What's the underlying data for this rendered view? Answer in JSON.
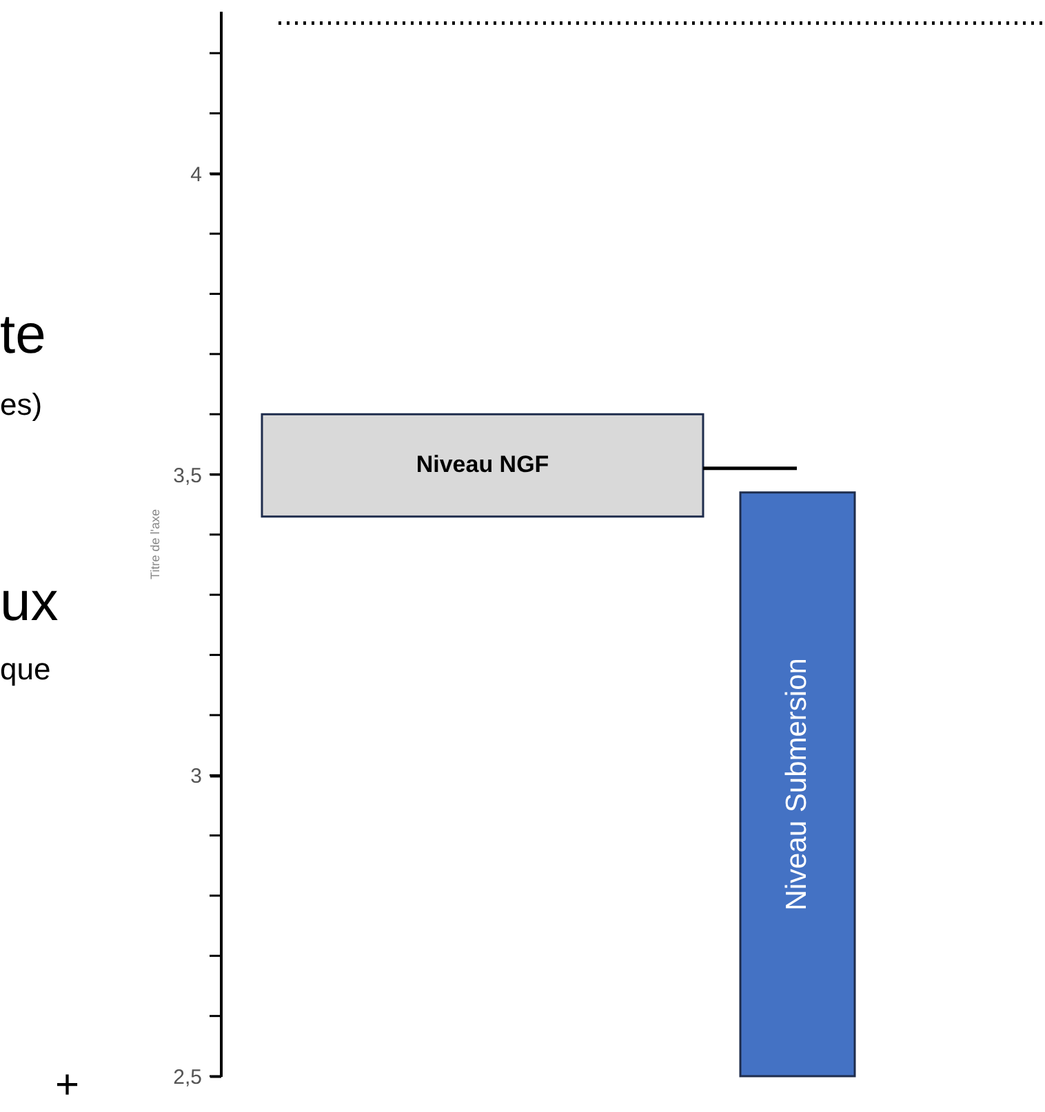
{
  "chart_data": {
    "type": "bar",
    "categories": [
      "Niveau NGF",
      "Niveau Submersion"
    ],
    "base": [
      3.43,
      2.5
    ],
    "values": [
      0.17,
      0.97
    ],
    "colors": [
      "#d9d9d9",
      "#4472c4"
    ],
    "ylabel": "Titre de l'axe",
    "ylim": [
      2.5,
      4.27
    ],
    "yticks": [
      {
        "value": 2.5,
        "label": "2,5"
      },
      3,
      {
        "value": 3.5,
        "label": "3,5"
      },
      4
    ],
    "ref_lines": [
      {
        "axis": "y",
        "value": 3.51,
        "color": "#000000",
        "line_style": "solid"
      },
      {
        "axis": "y",
        "value": 4.25,
        "color": "#000000",
        "line_style": "dotted"
      }
    ],
    "annotations": [
      "te",
      "es)",
      "ux",
      "que",
      "+"
    ],
    "grid": false
  }
}
